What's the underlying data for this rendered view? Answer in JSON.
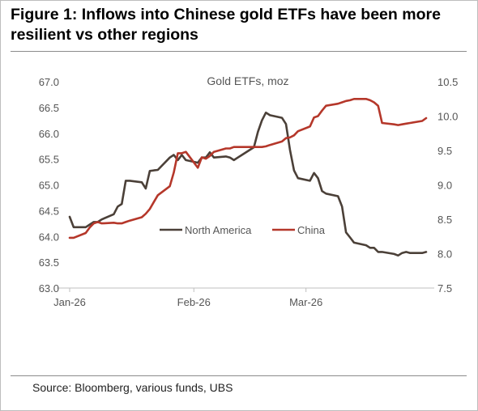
{
  "title": "Figure 1: Inflows into Chinese gold ETFs have been more resilient vs other regions",
  "source": "Source: Bloomberg, various funds, UBS",
  "chart_data": {
    "type": "line",
    "title": "Gold ETFs, moz",
    "x_ticks": [
      "Jan-26",
      "Feb-26",
      "Mar-26"
    ],
    "y_left": {
      "ticks": [
        "67.0",
        "66.5",
        "66.0",
        "65.5",
        "65.0",
        "64.5",
        "64.0",
        "63.5",
        "63.0"
      ],
      "ylim": [
        63.0,
        67.0
      ]
    },
    "y_right": {
      "ticks": [
        "10.5",
        "10.0",
        "9.5",
        "9.0",
        "8.5",
        "8.0",
        "7.5"
      ],
      "ylim": [
        7.5,
        10.5
      ]
    },
    "grid": false,
    "legend": "center",
    "series": [
      {
        "name": "North America",
        "axis": "left",
        "color": "#4b4038",
        "x": [
          "2026-01-01",
          "2026-01-02",
          "2026-01-05",
          "2026-01-06",
          "2026-01-07",
          "2026-01-08",
          "2026-01-09",
          "2026-01-12",
          "2026-01-13",
          "2026-01-14",
          "2026-01-15",
          "2026-01-16",
          "2026-01-19",
          "2026-01-20",
          "2026-01-21",
          "2026-01-22",
          "2026-01-23",
          "2026-01-26",
          "2026-01-27",
          "2026-01-28",
          "2026-01-29",
          "2026-01-30",
          "2026-02-02",
          "2026-02-03",
          "2026-02-04",
          "2026-02-05",
          "2026-02-06",
          "2026-02-09",
          "2026-02-10",
          "2026-02-11",
          "2026-02-12",
          "2026-02-13",
          "2026-02-16",
          "2026-02-17",
          "2026-02-18",
          "2026-02-19",
          "2026-02-20",
          "2026-02-23",
          "2026-02-24",
          "2026-02-25",
          "2026-02-26",
          "2026-02-27",
          "2026-03-02",
          "2026-03-03",
          "2026-03-04",
          "2026-03-05",
          "2026-03-06",
          "2026-03-09",
          "2026-03-10",
          "2026-03-11",
          "2026-03-12",
          "2026-03-13",
          "2026-03-16",
          "2026-03-17",
          "2026-03-18",
          "2026-03-19",
          "2026-03-20",
          "2026-03-23",
          "2026-03-24",
          "2026-03-25",
          "2026-03-26",
          "2026-03-27",
          "2026-03-30",
          "2026-03-31"
        ],
        "values": [
          64.38,
          64.18,
          64.18,
          64.23,
          64.28,
          64.28,
          64.33,
          64.43,
          64.58,
          64.63,
          65.08,
          65.08,
          65.05,
          64.93,
          65.27,
          65.28,
          65.29,
          65.53,
          65.58,
          65.48,
          65.58,
          65.48,
          65.43,
          65.53,
          65.53,
          65.63,
          65.53,
          65.55,
          65.53,
          65.48,
          65.53,
          65.58,
          65.73,
          66.03,
          66.25,
          66.4,
          66.35,
          66.3,
          66.18,
          65.68,
          65.28,
          65.13,
          65.08,
          65.23,
          65.13,
          64.88,
          64.83,
          64.78,
          64.58,
          64.08,
          63.98,
          63.88,
          63.83,
          63.78,
          63.78,
          63.7,
          63.7,
          63.66,
          63.63,
          63.68,
          63.7,
          63.68,
          63.68,
          63.7
        ]
      },
      {
        "name": "China",
        "axis": "right",
        "color": "#b5372a",
        "x": [
          "2026-01-01",
          "2026-01-02",
          "2026-01-05",
          "2026-01-06",
          "2026-01-07",
          "2026-01-08",
          "2026-01-09",
          "2026-01-12",
          "2026-01-13",
          "2026-01-14",
          "2026-01-15",
          "2026-01-16",
          "2026-01-19",
          "2026-01-20",
          "2026-01-21",
          "2026-01-22",
          "2026-01-23",
          "2026-01-26",
          "2026-01-27",
          "2026-01-28",
          "2026-01-29",
          "2026-01-30",
          "2026-02-02",
          "2026-02-03",
          "2026-02-04",
          "2026-02-05",
          "2026-02-06",
          "2026-02-09",
          "2026-02-10",
          "2026-02-11",
          "2026-02-12",
          "2026-02-13",
          "2026-02-16",
          "2026-02-17",
          "2026-02-18",
          "2026-02-19",
          "2026-02-20",
          "2026-02-23",
          "2026-02-24",
          "2026-02-25",
          "2026-02-26",
          "2026-02-27",
          "2026-03-02",
          "2026-03-03",
          "2026-03-04",
          "2026-03-05",
          "2026-03-06",
          "2026-03-09",
          "2026-03-10",
          "2026-03-11",
          "2026-03-12",
          "2026-03-13",
          "2026-03-16",
          "2026-03-17",
          "2026-03-18",
          "2026-03-19",
          "2026-03-20",
          "2026-03-23",
          "2026-03-24",
          "2026-03-25",
          "2026-03-26",
          "2026-03-27",
          "2026-03-30",
          "2026-03-31"
        ],
        "values": [
          8.23,
          8.23,
          8.3,
          8.38,
          8.44,
          8.46,
          8.44,
          8.45,
          8.44,
          8.44,
          8.46,
          8.48,
          8.53,
          8.58,
          8.65,
          8.75,
          8.85,
          8.98,
          9.18,
          9.46,
          9.46,
          9.48,
          9.25,
          9.4,
          9.38,
          9.42,
          9.48,
          9.53,
          9.53,
          9.55,
          9.55,
          9.55,
          9.55,
          9.55,
          9.55,
          9.56,
          9.58,
          9.63,
          9.68,
          9.69,
          9.72,
          9.78,
          9.85,
          9.98,
          10.0,
          10.08,
          10.15,
          10.18,
          10.2,
          10.22,
          10.23,
          10.25,
          10.25,
          10.23,
          10.2,
          10.15,
          9.9,
          9.88,
          9.87,
          9.88,
          9.89,
          9.9,
          9.93,
          9.97
        ]
      }
    ]
  }
}
